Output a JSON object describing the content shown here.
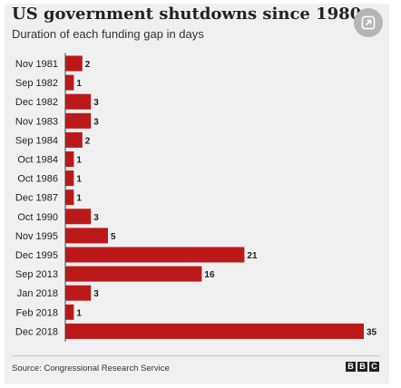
{
  "header": {
    "title": "US government shutdowns since 1980",
    "subtitle": "Duration of each funding gap in days"
  },
  "controls": {
    "expand_icon": "expand-icon"
  },
  "footer": {
    "source": "Source: Congressional Research Service",
    "logo": [
      "B",
      "B",
      "C"
    ]
  },
  "chart_data": {
    "type": "bar",
    "orientation": "horizontal",
    "categories": [
      "Nov 1981",
      "Sep 1982",
      "Dec 1982",
      "Nov 1983",
      "Sep 1984",
      "Oct 1984",
      "Oct 1986",
      "Dec 1987",
      "Oct 1990",
      "Nov 1995",
      "Dec 1995",
      "Sep 2013",
      "Jan 2018",
      "Feb 2018",
      "Dec 2018"
    ],
    "values": [
      2,
      1,
      3,
      3,
      2,
      1,
      1,
      1,
      3,
      5,
      21,
      16,
      3,
      1,
      35
    ],
    "title": "US government shutdowns since 1980",
    "subtitle": "Duration of each funding gap in days",
    "xlim": [
      0,
      35
    ],
    "grid": false,
    "data_labels": true,
    "bar_color": "#bb1919"
  }
}
